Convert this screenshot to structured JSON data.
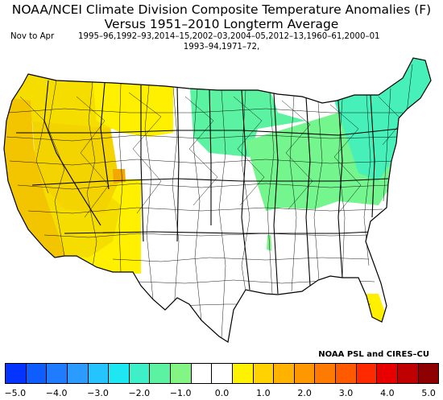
{
  "header": {
    "title_line1": "NOAA/NCEI Climate Division Composite Temperature Anomalies (F)",
    "title_line2": "Versus 1951–2010 Longterm Average",
    "period": "Nov to Apr",
    "years_line1": "1995–96,1992–93,2014–15,2002–03,2004–05,2012–13,1960–61,2000–01",
    "years_line2": "1993–94,1971–72,"
  },
  "credit": "NOAA PSL and CIRES–CU",
  "legend": {
    "colors": [
      "#0533ff",
      "#0f5cff",
      "#1f7cff",
      "#2a9bff",
      "#25c4ff",
      "#1ee7f2",
      "#3ef0c8",
      "#5bf3a2",
      "#82f584",
      "#ffffff",
      "#ffffff",
      "#fff200",
      "#ffd200",
      "#ffb200",
      "#ff9800",
      "#ff7a00",
      "#ff5a00",
      "#ff2a00",
      "#e80000",
      "#c00000",
      "#8f0000"
    ],
    "tick_labels": [
      "−5.0",
      "−4.0",
      "−3.0",
      "−2.0",
      "−1.0",
      "0.0",
      "1.0",
      "2.0",
      "3.0",
      "4.0",
      "5.0"
    ]
  },
  "regions": [
    {
      "name": "pacific-northwest",
      "color": "#f6dd00",
      "anomaly": "1.0 to 1.5"
    },
    {
      "name": "california-coast",
      "color": "#f3c400",
      "anomaly": "1.5 to 2.0"
    },
    {
      "name": "great-basin",
      "color": "#f4d400",
      "anomaly": "1.0 to 2.0"
    },
    {
      "name": "southwest",
      "color": "#f6dd00",
      "anomaly": "1.0 to 1.5"
    },
    {
      "name": "southern-arizona",
      "color": "#fff000",
      "anomaly": "0.5 to 1.0"
    },
    {
      "name": "colorado-hotspot",
      "color": "#f2a800",
      "anomaly": "2.0 to 2.5"
    },
    {
      "name": "montana-wyoming",
      "color": "#fff000",
      "anomaly": "0.5 to 1.0"
    },
    {
      "name": "great-plains-south",
      "color": "#ffffff",
      "anomaly": "-0.5 to 0.5"
    },
    {
      "name": "upper-midwest",
      "color": "#5bf3a2",
      "anomaly": "-1.0 to -1.5"
    },
    {
      "name": "ohio-valley",
      "color": "#74f58e",
      "anomaly": "-0.5 to -1.0"
    },
    {
      "name": "northeast",
      "color": "#46f0b8",
      "anomaly": "-1.5 to -2.0"
    },
    {
      "name": "southeast",
      "color": "#ffffff",
      "anomaly": "-0.5 to 0.5"
    },
    {
      "name": "south-florida",
      "color": "#fff000",
      "anomaly": "0.5 to 1.0"
    }
  ]
}
